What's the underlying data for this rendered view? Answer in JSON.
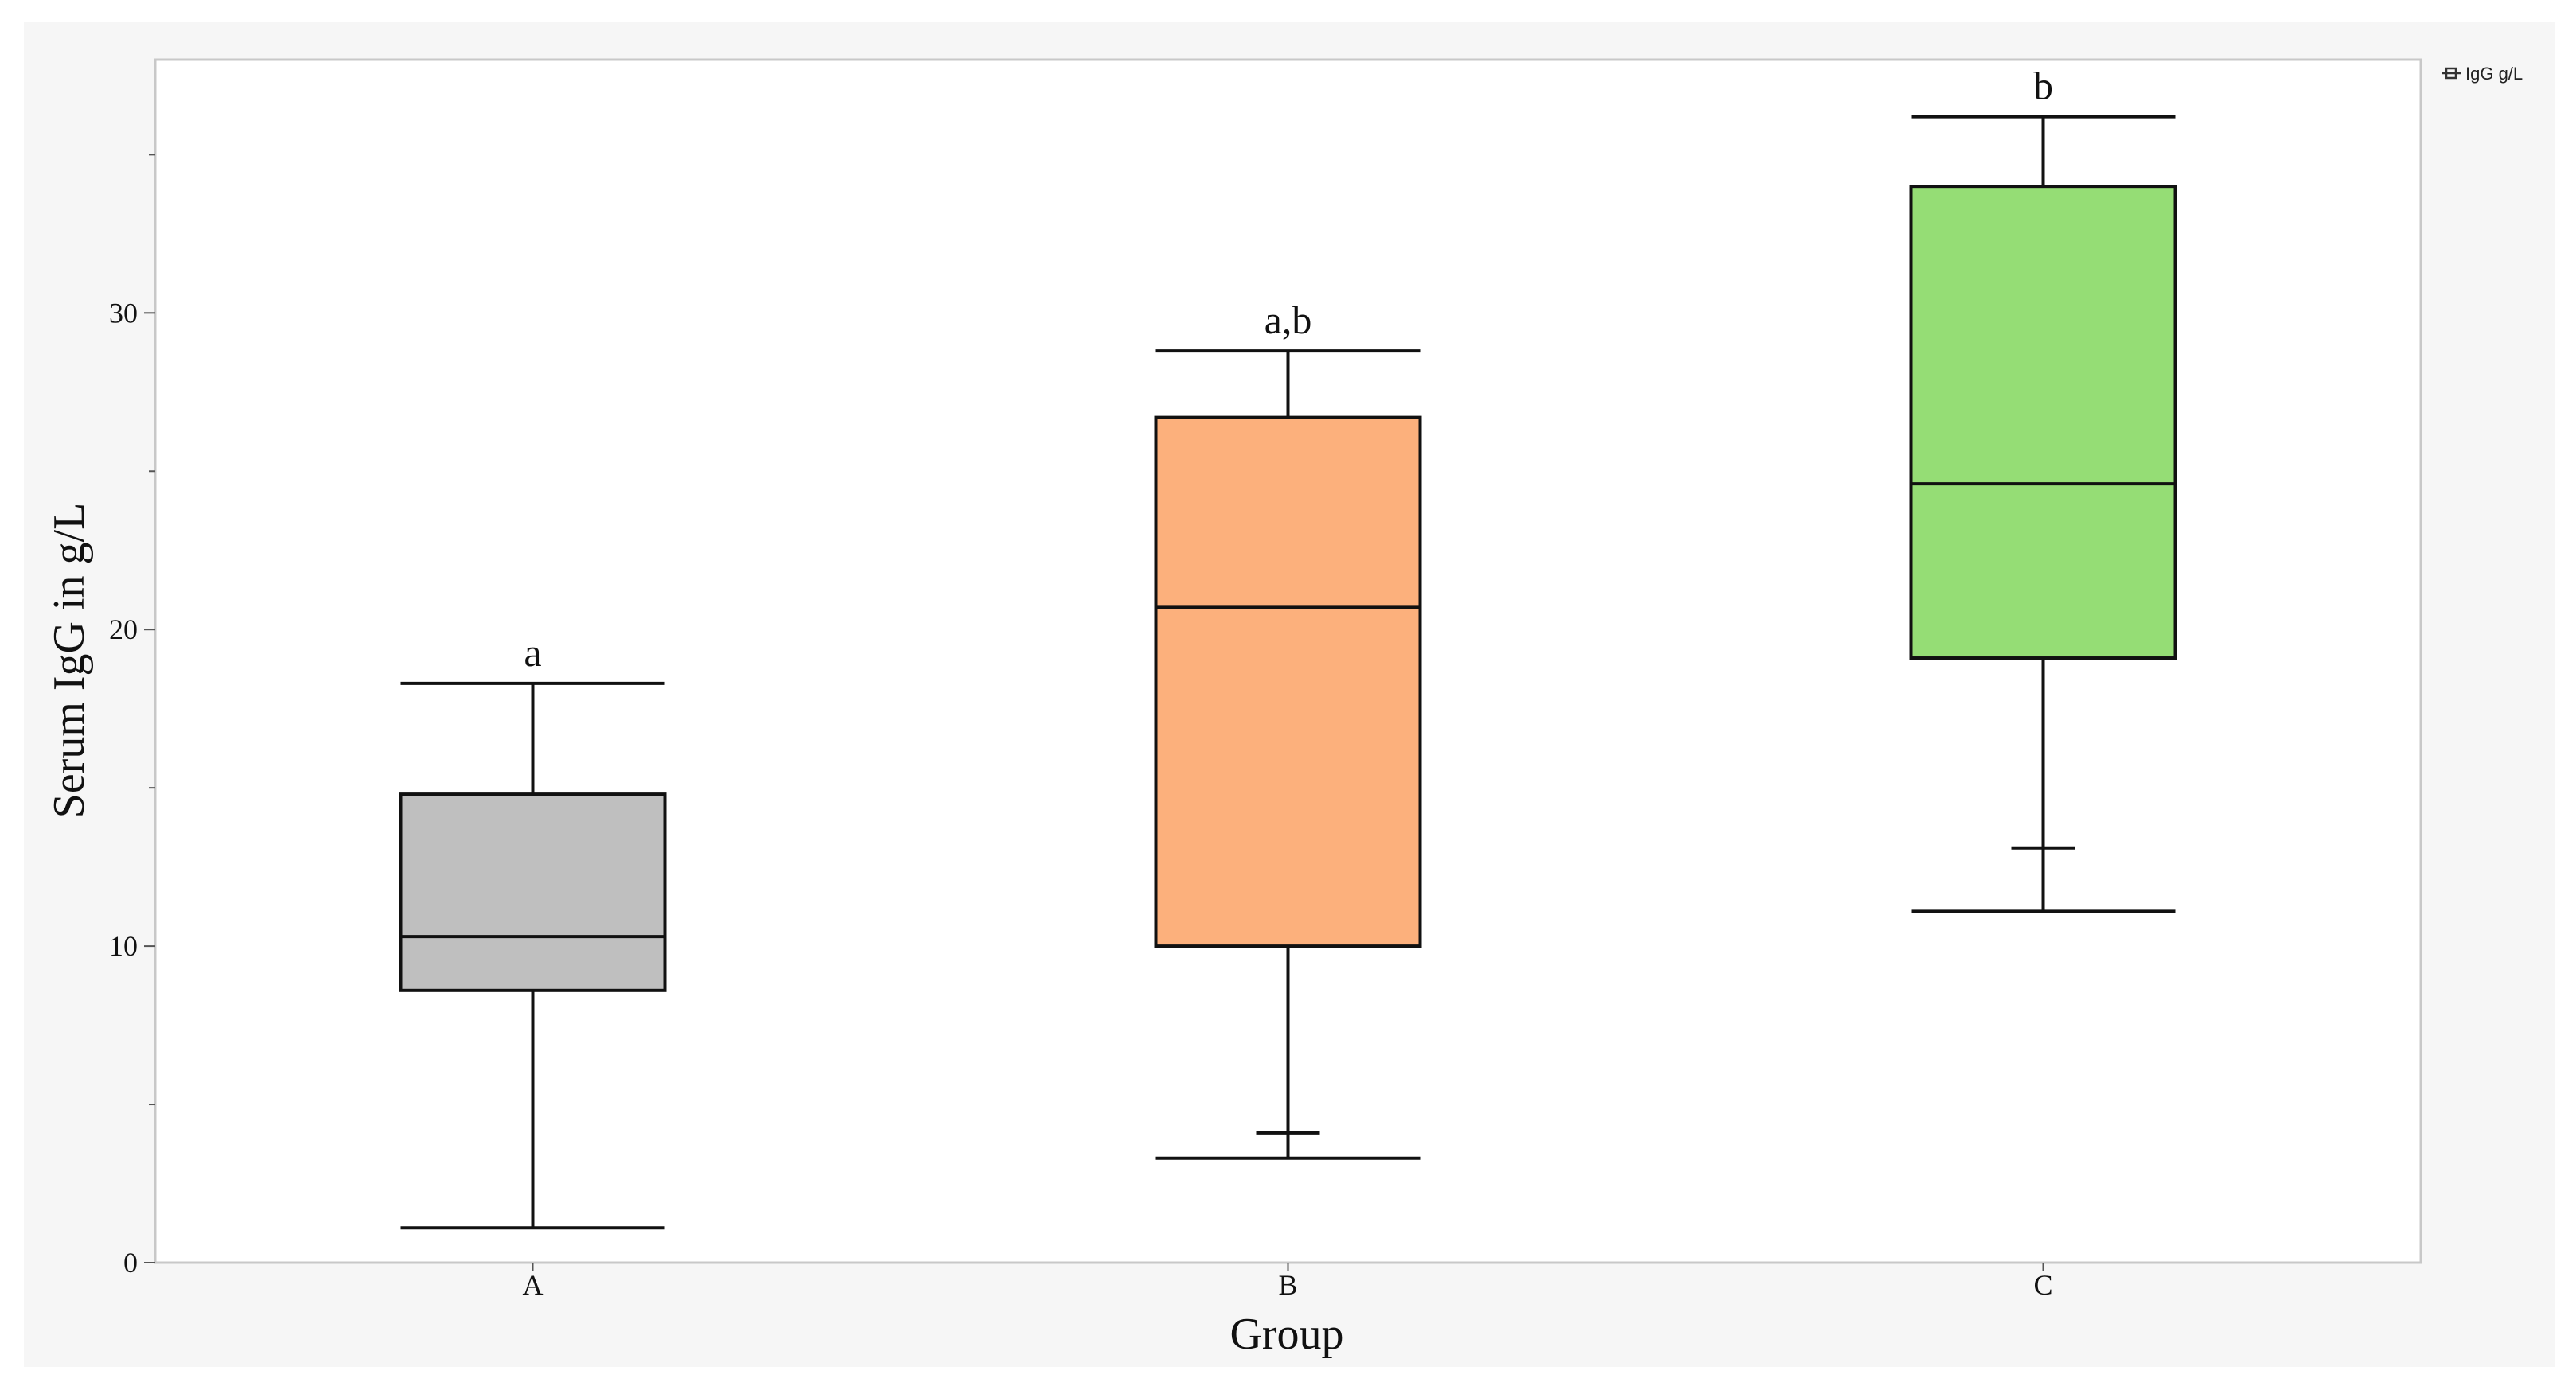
{
  "chart_data": {
    "type": "boxplot",
    "xlabel": "Group",
    "ylabel": "Serum IgG in g/L",
    "ylim": [
      0,
      38
    ],
    "yticks": [
      0,
      10,
      20,
      30
    ],
    "grid": false,
    "legend": {
      "label": "IgG g/L",
      "placement": "top-right"
    },
    "categories": [
      "A",
      "B",
      "C"
    ],
    "groups": [
      {
        "category": "A",
        "min": 1.1,
        "q1": 8.6,
        "median": 10.3,
        "q3": 14.8,
        "max": 18.3,
        "mean": null,
        "significance": "a",
        "color": "#bfbfbf"
      },
      {
        "category": "B",
        "min": 3.3,
        "q1": 10.0,
        "median": 20.7,
        "q3": 26.7,
        "max": 28.8,
        "mean": 4.1,
        "significance": "a,b",
        "color": "#fcb07c"
      },
      {
        "category": "C",
        "min": 11.1,
        "q1": 19.1,
        "median": 24.6,
        "q3": 34.0,
        "max": 36.2,
        "mean": 13.1,
        "significance": "b",
        "color": "#95dd75"
      }
    ]
  }
}
